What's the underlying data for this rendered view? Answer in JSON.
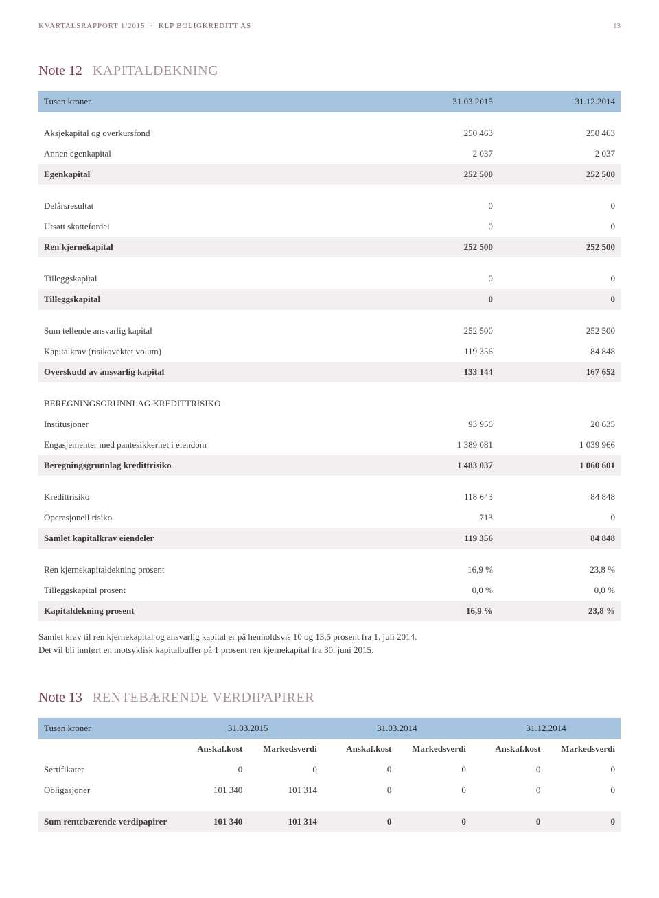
{
  "header": {
    "report": "KVARTALSRAPPORT 1/2015",
    "company": "KLP BOLIGKREDITT AS",
    "page": "13"
  },
  "note12": {
    "number": "Note 12",
    "title": "KAPITALDEKNING",
    "header": {
      "label": "Tusen kroner",
      "c1": "31.03.2015",
      "c2": "31.12.2014"
    },
    "sections": [
      {
        "rows": [
          {
            "l": "Aksjekapital og overkursfond",
            "c1": "250 463",
            "c2": "250 463"
          },
          {
            "l": "Annen egenkapital",
            "c1": "2 037",
            "c2": "2 037"
          }
        ],
        "total": {
          "l": "Egenkapital",
          "c1": "252 500",
          "c2": "252 500"
        }
      },
      {
        "rows": [
          {
            "l": "Delårsresultat",
            "c1": "0",
            "c2": "0"
          },
          {
            "l": "Utsatt skattefordel",
            "c1": "0",
            "c2": "0"
          }
        ],
        "total": {
          "l": "Ren kjernekapital",
          "c1": "252 500",
          "c2": "252 500"
        }
      },
      {
        "rows": [
          {
            "l": "Tilleggskapital",
            "c1": "0",
            "c2": "0"
          }
        ],
        "total": {
          "l": "Tilleggskapital",
          "c1": "0",
          "c2": "0"
        }
      },
      {
        "rows": [
          {
            "l": "Sum tellende ansvarlig kapital",
            "c1": "252 500",
            "c2": "252 500"
          },
          {
            "l": "Kapitalkrav (risikovektet volum)",
            "c1": "119 356",
            "c2": "84 848"
          }
        ],
        "total": {
          "l": "Overskudd av ansvarlig kapital",
          "c1": "133 144",
          "c2": "167 652"
        }
      },
      {
        "subhead": "BEREGNINGSGRUNNLAG KREDITTRISIKO",
        "rows": [
          {
            "l": "Institusjoner",
            "c1": "93 956",
            "c2": "20 635"
          },
          {
            "l": "Engasjementer med pantesikkerhet i eiendom",
            "c1": "1 389 081",
            "c2": "1 039 966"
          }
        ],
        "total": {
          "l": "Beregningsgrunnlag kredittrisiko",
          "c1": "1 483 037",
          "c2": "1 060 601"
        }
      },
      {
        "rows": [
          {
            "l": "Kredittrisiko",
            "c1": "118 643",
            "c2": "84 848"
          },
          {
            "l": "Operasjonell risiko",
            "c1": "713",
            "c2": "0"
          }
        ],
        "total": {
          "l": "Samlet kapitalkrav eiendeler",
          "c1": "119 356",
          "c2": "84 848"
        }
      },
      {
        "rows": [
          {
            "l": "Ren kjernekapitaldekning prosent",
            "c1": "16,9 %",
            "c2": "23,8 %"
          },
          {
            "l": "Tilleggskapital prosent",
            "c1": "0,0 %",
            "c2": "0,0 %"
          }
        ],
        "total": {
          "l": "Kapitaldekning prosent",
          "c1": "16,9 %",
          "c2": "23,8 %"
        }
      }
    ],
    "footnote1": "Samlet krav til ren kjernekapital og ansvarlig kapital er på henholdsvis 10 og 13,5 prosent fra 1. juli 2014.",
    "footnote2": "Det vil bli innført en motsyklisk kapitalbuffer på 1 prosent ren kjernekapital fra 30. juni 2015."
  },
  "note13": {
    "number": "Note 13",
    "title": "RENTEBÆRENDE VERDIPAPIRER",
    "header": {
      "label": "Tusen kroner",
      "p1": "31.03.2015",
      "p2": "31.03.2014",
      "p3": "31.12.2014"
    },
    "subheader": {
      "a": "Anskaf.kost",
      "m": "Markedsverdi"
    },
    "rows": [
      {
        "l": "Sertifikater",
        "v": [
          "0",
          "0",
          "0",
          "0",
          "0",
          "0"
        ]
      },
      {
        "l": "Obligasjoner",
        "v": [
          "101 340",
          "101 314",
          "0",
          "0",
          "0",
          "0"
        ]
      }
    ],
    "total": {
      "l": "Sum rentebærende verdipapirer",
      "v": [
        "101 340",
        "101 314",
        "0",
        "0",
        "0",
        "0"
      ]
    }
  }
}
